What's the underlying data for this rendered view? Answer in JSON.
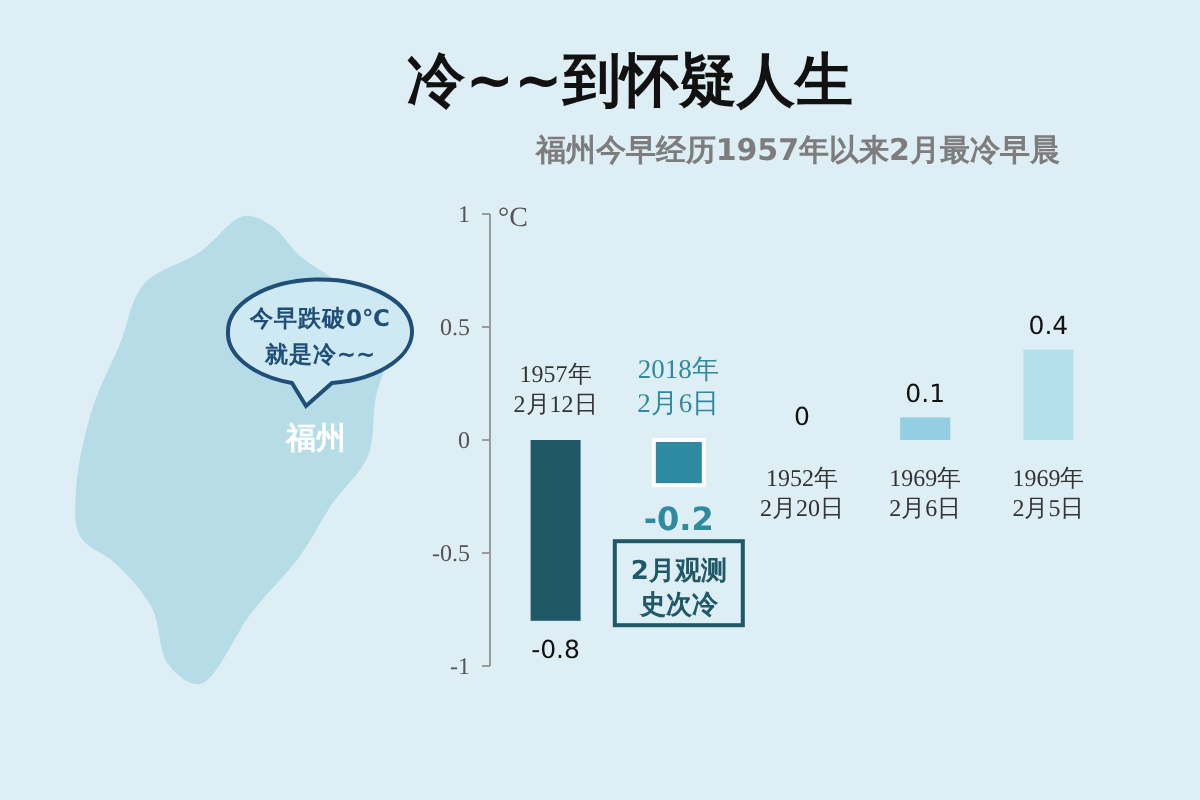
{
  "chart_data": {
    "type": "bar",
    "title": "冷~~到怀疑人生",
    "subtitle": "福州今早经历1957年以来2月最冷早晨",
    "ylabel": "°C",
    "categories": [
      "1957年2月12日",
      "2018年2月6日",
      "1952年2月20日",
      "1969年2月6日",
      "1969年2月5日"
    ],
    "values": [
      -0.8,
      -0.2,
      0,
      0.1,
      0.4
    ],
    "colors": [
      "#1f5866",
      "#2e8aa0",
      "#8fcde0",
      "#93cfe0",
      "#b5dfea"
    ],
    "ylim": [
      -1,
      1
    ],
    "yticks": [
      -1,
      -0.5,
      0,
      0.5,
      1
    ],
    "data_labels": true,
    "annotations": [
      "今早跌破0℃就是冷~~",
      "福州",
      {
        "text": "2月观测史次冷",
        "x": "2018年2月6日",
        "y": -0.2
      }
    ]
  }
}
